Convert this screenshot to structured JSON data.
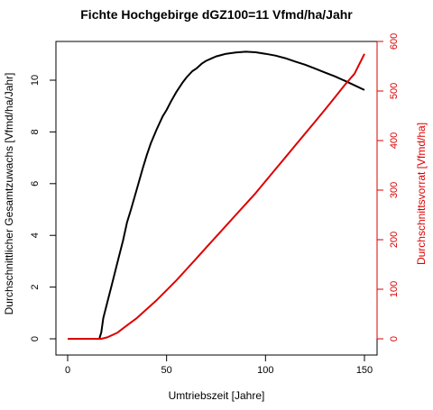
{
  "chart_data": {
    "type": "line",
    "title": "Fichte Hochgebirge dGZ100=11 Vfmd/ha/Jahr",
    "xlabel": "Umtriebszeit [Jahre]",
    "xlim": [
      0,
      150
    ],
    "x_ticks": [
      0,
      50,
      100,
      150
    ],
    "y_left": {
      "label": "Durchschnittlicher Gesamtzuwachs [Vfmd/ha/Jahr]",
      "lim": [
        0,
        11.4
      ],
      "ticks": [
        0,
        2,
        4,
        6,
        8,
        10
      ],
      "color": "#000000"
    },
    "y_right": {
      "label": "Durchschnittsvorrat [Vfmd/ha]",
      "lim": [
        0,
        600
      ],
      "ticks": [
        0,
        100,
        200,
        300,
        400,
        500,
        600
      ],
      "color": "#dd0000"
    },
    "series": [
      {
        "axis": "left",
        "color": "#000000",
        "points": [
          [
            0,
            0
          ],
          [
            16,
            0
          ],
          [
            17,
            0.25
          ],
          [
            18,
            0.8
          ],
          [
            20,
            1.4
          ],
          [
            22,
            2.0
          ],
          [
            25,
            2.9
          ],
          [
            28,
            3.8
          ],
          [
            30,
            4.5
          ],
          [
            32,
            5.0
          ],
          [
            35,
            5.8
          ],
          [
            38,
            6.6
          ],
          [
            40,
            7.1
          ],
          [
            42,
            7.55
          ],
          [
            45,
            8.1
          ],
          [
            48,
            8.6
          ],
          [
            50,
            8.85
          ],
          [
            52,
            9.15
          ],
          [
            55,
            9.55
          ],
          [
            58,
            9.9
          ],
          [
            60,
            10.1
          ],
          [
            63,
            10.35
          ],
          [
            65,
            10.45
          ],
          [
            68,
            10.65
          ],
          [
            70,
            10.75
          ],
          [
            73,
            10.85
          ],
          [
            75,
            10.92
          ],
          [
            78,
            10.98
          ],
          [
            80,
            11.02
          ],
          [
            85,
            11.07
          ],
          [
            90,
            11.1
          ],
          [
            95,
            11.08
          ],
          [
            100,
            11.02
          ],
          [
            105,
            10.95
          ],
          [
            110,
            10.85
          ],
          [
            115,
            10.72
          ],
          [
            120,
            10.6
          ],
          [
            125,
            10.45
          ],
          [
            130,
            10.3
          ],
          [
            135,
            10.15
          ],
          [
            140,
            9.98
          ],
          [
            145,
            9.8
          ],
          [
            150,
            9.62
          ]
        ]
      },
      {
        "axis": "right",
        "color": "#dd0000",
        "points": [
          [
            0,
            0
          ],
          [
            10,
            0
          ],
          [
            17,
            0
          ],
          [
            20,
            3
          ],
          [
            25,
            12
          ],
          [
            30,
            27
          ],
          [
            35,
            42
          ],
          [
            40,
            60
          ],
          [
            45,
            78
          ],
          [
            50,
            98
          ],
          [
            55,
            118
          ],
          [
            60,
            140
          ],
          [
            65,
            162
          ],
          [
            70,
            184
          ],
          [
            75,
            206
          ],
          [
            80,
            228
          ],
          [
            85,
            250
          ],
          [
            90,
            272
          ],
          [
            95,
            294
          ],
          [
            100,
            318
          ],
          [
            105,
            342
          ],
          [
            110,
            366
          ],
          [
            115,
            390
          ],
          [
            120,
            414
          ],
          [
            125,
            438
          ],
          [
            130,
            462
          ],
          [
            135,
            487
          ],
          [
            140,
            512
          ],
          [
            145,
            535
          ],
          [
            150,
            575
          ]
        ]
      }
    ],
    "grid": false
  }
}
